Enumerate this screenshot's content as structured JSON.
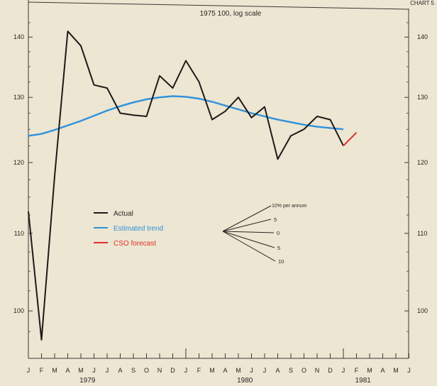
{
  "header": {
    "corner_label": "CHART 5"
  },
  "chart_data": {
    "type": "line",
    "title": "1975 100, log scale",
    "scale": "log",
    "ylim": [
      95,
      145
    ],
    "yticks": [
      100,
      110,
      120,
      130,
      140
    ],
    "grid": false,
    "legend_position": "center-left",
    "month_labels": [
      "J",
      "F",
      "M",
      "A",
      "M",
      "J",
      "J",
      "A",
      "S",
      "O",
      "N",
      "D",
      "J",
      "F",
      "M",
      "A",
      "M",
      "J",
      "J",
      "A",
      "S",
      "O",
      "N",
      "D",
      "J",
      "F",
      "M",
      "A",
      "M",
      "J"
    ],
    "year_labels": [
      {
        "label": "1979",
        "month_index": 4.5
      },
      {
        "label": "1980",
        "month_index": 16.5
      },
      {
        "label": "1981",
        "month_index": 25.5
      }
    ],
    "series": [
      {
        "name": "Actual",
        "color": "#1e1a18",
        "x": [
          0,
          1,
          2,
          3,
          4,
          5,
          6,
          7,
          8,
          9,
          10,
          11,
          12,
          13,
          14,
          15,
          16,
          17,
          18,
          19,
          20,
          21,
          22,
          23,
          24
        ],
        "values": [
          113,
          96.5,
          118,
          141,
          138.5,
          132,
          131.5,
          127.5,
          127.2,
          127,
          133.5,
          131.5,
          136,
          132.5,
          126.5,
          127.8,
          130,
          126.8,
          128.5,
          120.5,
          124,
          125,
          127,
          126.5,
          122.5
        ]
      },
      {
        "name": "Estimated trend",
        "color": "#2f92dc",
        "x": [
          0,
          1,
          2,
          3,
          4,
          5,
          6,
          7,
          8,
          9,
          10,
          11,
          12,
          13,
          14,
          15,
          16,
          17,
          18,
          19,
          20,
          21,
          22,
          23,
          24
        ],
        "values": [
          124,
          124.3,
          124.9,
          125.6,
          126.3,
          127.1,
          127.9,
          128.6,
          129.2,
          129.7,
          130,
          130.2,
          130.1,
          129.8,
          129.3,
          128.7,
          128.1,
          127.5,
          127,
          126.5,
          126.1,
          125.7,
          125.4,
          125.2,
          125
        ]
      },
      {
        "name": "CSO forecast",
        "color": "#e0302a",
        "x": [
          24,
          25
        ],
        "values": [
          122.5,
          124.5
        ]
      }
    ],
    "growth_fan": {
      "title": "10% per annum",
      "labels": [
        "10% per annum",
        "5",
        "0",
        "5",
        "10"
      ],
      "rates": [
        10,
        5,
        0,
        -5,
        -10
      ]
    }
  }
}
